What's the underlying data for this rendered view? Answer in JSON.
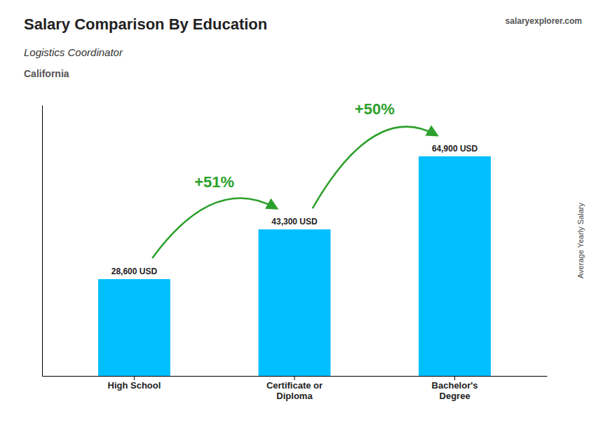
{
  "chart_data": {
    "type": "bar",
    "title": "Salary Comparison By Education",
    "subtitle": "Logistics Coordinator",
    "location": "California",
    "watermark": "salaryexplorer.com",
    "ylabel": "Average Yearly Salary",
    "categories": [
      "High School",
      "Certificate or\nDiploma",
      "Bachelor's\nDegree"
    ],
    "values": [
      28600,
      43300,
      64900
    ],
    "value_labels": [
      "28,600 USD",
      "43,300 USD",
      "64,900 USD"
    ],
    "data_labels": true,
    "annotations": [
      "+51%",
      "+50%"
    ],
    "color": "#00BFFF",
    "ylim": [
      0,
      80000
    ],
    "yticks": [],
    "tick_labels": "x",
    "grid": false
  }
}
